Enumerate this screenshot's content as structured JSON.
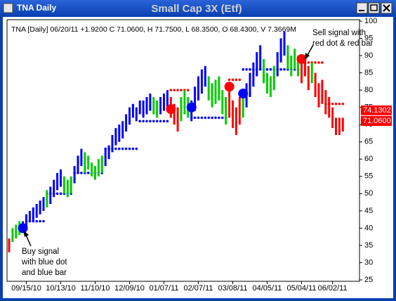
{
  "window_title": "TNA Daily",
  "chart_data": {
    "type": "ohlc-bars",
    "title": "Small Cap 3X (Etf)",
    "header": "TNA [Daily] 06/20/11 +1.9200 C 71.0600, H 71.7500, L 68.3500, O 68.4300, V 7.3669M",
    "categories": [
      null,
      null,
      null,
      null,
      null,
      "09/15/10",
      null,
      null,
      null,
      null,
      null,
      null,
      null,
      null,
      null,
      "10/13/10",
      null,
      null,
      null,
      null,
      null,
      null,
      null,
      null,
      null,
      "11/10/10",
      null,
      null,
      null,
      null,
      null,
      null,
      null,
      null,
      null,
      "12/09/10",
      null,
      null,
      null,
      null,
      null,
      null,
      null,
      null,
      null,
      "01/07/11",
      null,
      null,
      null,
      null,
      null,
      null,
      null,
      null,
      null,
      "02/07/11",
      null,
      null,
      null,
      null,
      null,
      null,
      null,
      null,
      null,
      "03/08/11",
      null,
      null,
      null,
      null,
      null,
      null,
      null,
      null,
      null,
      "04/05/11",
      null,
      null,
      null,
      null,
      null,
      null,
      null,
      null,
      null,
      "05/04/11",
      null,
      null,
      null,
      null,
      null,
      null,
      null,
      null,
      "06/02/11",
      null,
      null,
      null
    ],
    "low": [
      33,
      36,
      37,
      38,
      39,
      40,
      42,
      42,
      43,
      44,
      45,
      46,
      47,
      49,
      51,
      52,
      50,
      49,
      50,
      53,
      56,
      58,
      56,
      57,
      55,
      54,
      55,
      56,
      58,
      60,
      62,
      64,
      65,
      66,
      68,
      70,
      72,
      71,
      73,
      72,
      73,
      74,
      73,
      72,
      73,
      74,
      75,
      72,
      70,
      68,
      71,
      73,
      72,
      71,
      74,
      77,
      79,
      81,
      77,
      75,
      76,
      77,
      73,
      70,
      72,
      69,
      67,
      70,
      72,
      75,
      78,
      81,
      84,
      86,
      82,
      79,
      78,
      80,
      84,
      88,
      90,
      86,
      84,
      86,
      84,
      82,
      84,
      80,
      82,
      78,
      75,
      76,
      73,
      72,
      69,
      67,
      67,
      68
    ],
    "high": [
      37,
      40,
      41,
      42,
      42,
      44,
      45,
      46,
      47,
      48,
      49,
      51,
      52,
      54,
      56,
      57,
      55,
      54,
      55,
      58,
      61,
      63,
      62,
      61,
      59,
      58,
      60,
      61,
      63,
      64,
      67,
      69,
      70,
      71,
      73,
      75,
      76,
      75,
      77,
      77,
      78,
      79,
      78,
      77,
      78,
      79,
      80,
      78,
      76,
      75,
      78,
      80,
      78,
      77,
      81,
      84,
      86,
      87,
      84,
      82,
      83,
      84,
      80,
      78,
      80,
      77,
      75,
      78,
      79,
      82,
      85,
      88,
      91,
      93,
      89,
      85,
      84,
      87,
      91,
      95,
      97,
      93,
      90,
      92,
      90,
      89,
      90,
      87,
      88,
      85,
      82,
      83,
      80,
      78,
      75,
      72,
      72,
      72
    ],
    "bar_colors": [
      "#ff0000",
      "#00cc00",
      "#00cc00",
      "#00cc00",
      "#0000ff",
      "#0000ff",
      "#0000ff",
      "#0000ff",
      "#0000ff",
      "#0000ff",
      "#0000ff",
      "#00cc00",
      "#0000ff",
      "#0000ff",
      "#0000ff",
      "#0000ff",
      "#00cc00",
      "#00cc00",
      "#00cc00",
      "#0000ff",
      "#0000ff",
      "#0000ff",
      "#00cc00",
      "#00cc00",
      "#00cc00",
      "#00cc00",
      "#00cc00",
      "#00cc00",
      "#0000ff",
      "#0000ff",
      "#0000ff",
      "#0000ff",
      "#0000ff",
      "#0000ff",
      "#0000ff",
      "#0000ff",
      "#0000ff",
      "#0000ff",
      "#0000ff",
      "#0000ff",
      "#0000ff",
      "#0000ff",
      "#00cc00",
      "#00cc00",
      "#0000ff",
      "#0000ff",
      "#0000ff",
      "#ff0000",
      "#ff0000",
      "#ff0000",
      "#00cc00",
      "#00cc00",
      "#00cc00",
      "#0000ff",
      "#0000ff",
      "#0000ff",
      "#0000ff",
      "#0000ff",
      "#00cc00",
      "#00cc00",
      "#00cc00",
      "#00cc00",
      "#00cc00",
      "#00cc00",
      "#ff0000",
      "#ff0000",
      "#ff0000",
      "#ff0000",
      "#00cc00",
      "#0000ff",
      "#0000ff",
      "#0000ff",
      "#0000ff",
      "#0000ff",
      "#00cc00",
      "#00cc00",
      "#00cc00",
      "#00cc00",
      "#0000ff",
      "#0000ff",
      "#0000ff",
      "#00cc00",
      "#00cc00",
      "#00cc00",
      "#00cc00",
      "#ff0000",
      "#ff0000",
      "#ff0000",
      "#00cc00",
      "#ff0000",
      "#ff0000",
      "#ff0000",
      "#ff0000",
      "#ff0000",
      "#ff0000",
      "#ff0000",
      "#ff0000",
      "#ff0000"
    ],
    "stops": [
      {
        "start": 5,
        "end": 10,
        "value": 42,
        "color": "#0000ff"
      },
      {
        "start": 11,
        "end": 18,
        "value": 50,
        "color": "#0000ff"
      },
      {
        "start": 19,
        "end": 27,
        "value": 56,
        "color": "#0000ff"
      },
      {
        "start": 28,
        "end": 37,
        "value": 63,
        "color": "#0000ff"
      },
      {
        "start": 38,
        "end": 46,
        "value": 71,
        "color": "#0000ff"
      },
      {
        "start": 47,
        "end": 52,
        "value": 80,
        "color": "#ff0000"
      },
      {
        "start": 53,
        "end": 63,
        "value": 72,
        "color": "#0000ff"
      },
      {
        "start": 64,
        "end": 67,
        "value": 83,
        "color": "#ff0000"
      },
      {
        "start": 68,
        "end": 84,
        "value": 86,
        "color": "#0000ff"
      },
      {
        "start": 85,
        "end": 91,
        "value": 88,
        "color": "#ff0000"
      },
      {
        "start": 92,
        "end": 97,
        "value": 76,
        "color": "#ff0000"
      }
    ],
    "signals": [
      {
        "index": 4,
        "value": 40,
        "color": "#0000ff"
      },
      {
        "index": 47,
        "value": 74.5,
        "color": "#ff0000"
      },
      {
        "index": 53,
        "value": 75,
        "color": "#0000ff"
      },
      {
        "index": 64,
        "value": 81,
        "color": "#ff0000"
      },
      {
        "index": 68,
        "value": 79,
        "color": "#0000ff"
      },
      {
        "index": 85,
        "value": 89,
        "color": "#ff0000"
      }
    ],
    "price_labels": [
      {
        "value": 74.1302,
        "label": "74.1302"
      },
      {
        "value": 71.06,
        "label": "71.0600"
      }
    ],
    "price_label_color": "#ff0000",
    "ylim": [
      25,
      100
    ],
    "yticks": [
      25,
      30,
      35,
      40,
      45,
      50,
      55,
      60,
      65,
      70,
      75,
      80,
      85,
      90,
      95,
      100
    ],
    "annotations": [
      {
        "lines": [
          "Buy signal",
          "with blue dot",
          "and blue bar"
        ]
      },
      {
        "lines": [
          "Sell signal with",
          "red dot & red bar"
        ]
      }
    ]
  }
}
